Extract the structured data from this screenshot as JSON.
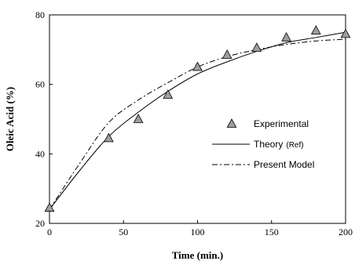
{
  "chart_data": {
    "type": "line",
    "xlabel": "Time (min.)",
    "ylabel": "Oleic Acid (%)",
    "xlim": [
      0,
      200
    ],
    "ylim": [
      20,
      80
    ],
    "xticks": [
      0,
      50,
      100,
      150,
      200
    ],
    "yticks": [
      20,
      40,
      60,
      80
    ],
    "grid": false,
    "legend_position": "center-right",
    "series": [
      {
        "name": "Experimental",
        "style": "markers",
        "marker": "triangle",
        "color": "#9e9e9e",
        "x": [
          0,
          40,
          60,
          80,
          100,
          120,
          140,
          160,
          180,
          200
        ],
        "y": [
          24.5,
          44.5,
          50,
          57,
          65,
          68.5,
          70.5,
          73.5,
          75.5,
          74.5
        ]
      },
      {
        "name": "Theory",
        "name_suffix": "(Ref)",
        "style": "solid",
        "color": "#000000",
        "x": [
          0,
          20,
          40,
          60,
          80,
          100,
          120,
          140,
          160,
          180,
          200
        ],
        "y": [
          24,
          35,
          45,
          52,
          58,
          63,
          66.5,
          69.5,
          72,
          73.5,
          75
        ]
      },
      {
        "name": "Present Model",
        "style": "dashdot",
        "color": "#000000",
        "x": [
          0,
          20,
          40,
          60,
          80,
          100,
          120,
          140,
          160,
          180,
          200
        ],
        "y": [
          24,
          37,
          49,
          55.5,
          60.5,
          65,
          68,
          70,
          71.5,
          72.5,
          73
        ]
      }
    ]
  }
}
